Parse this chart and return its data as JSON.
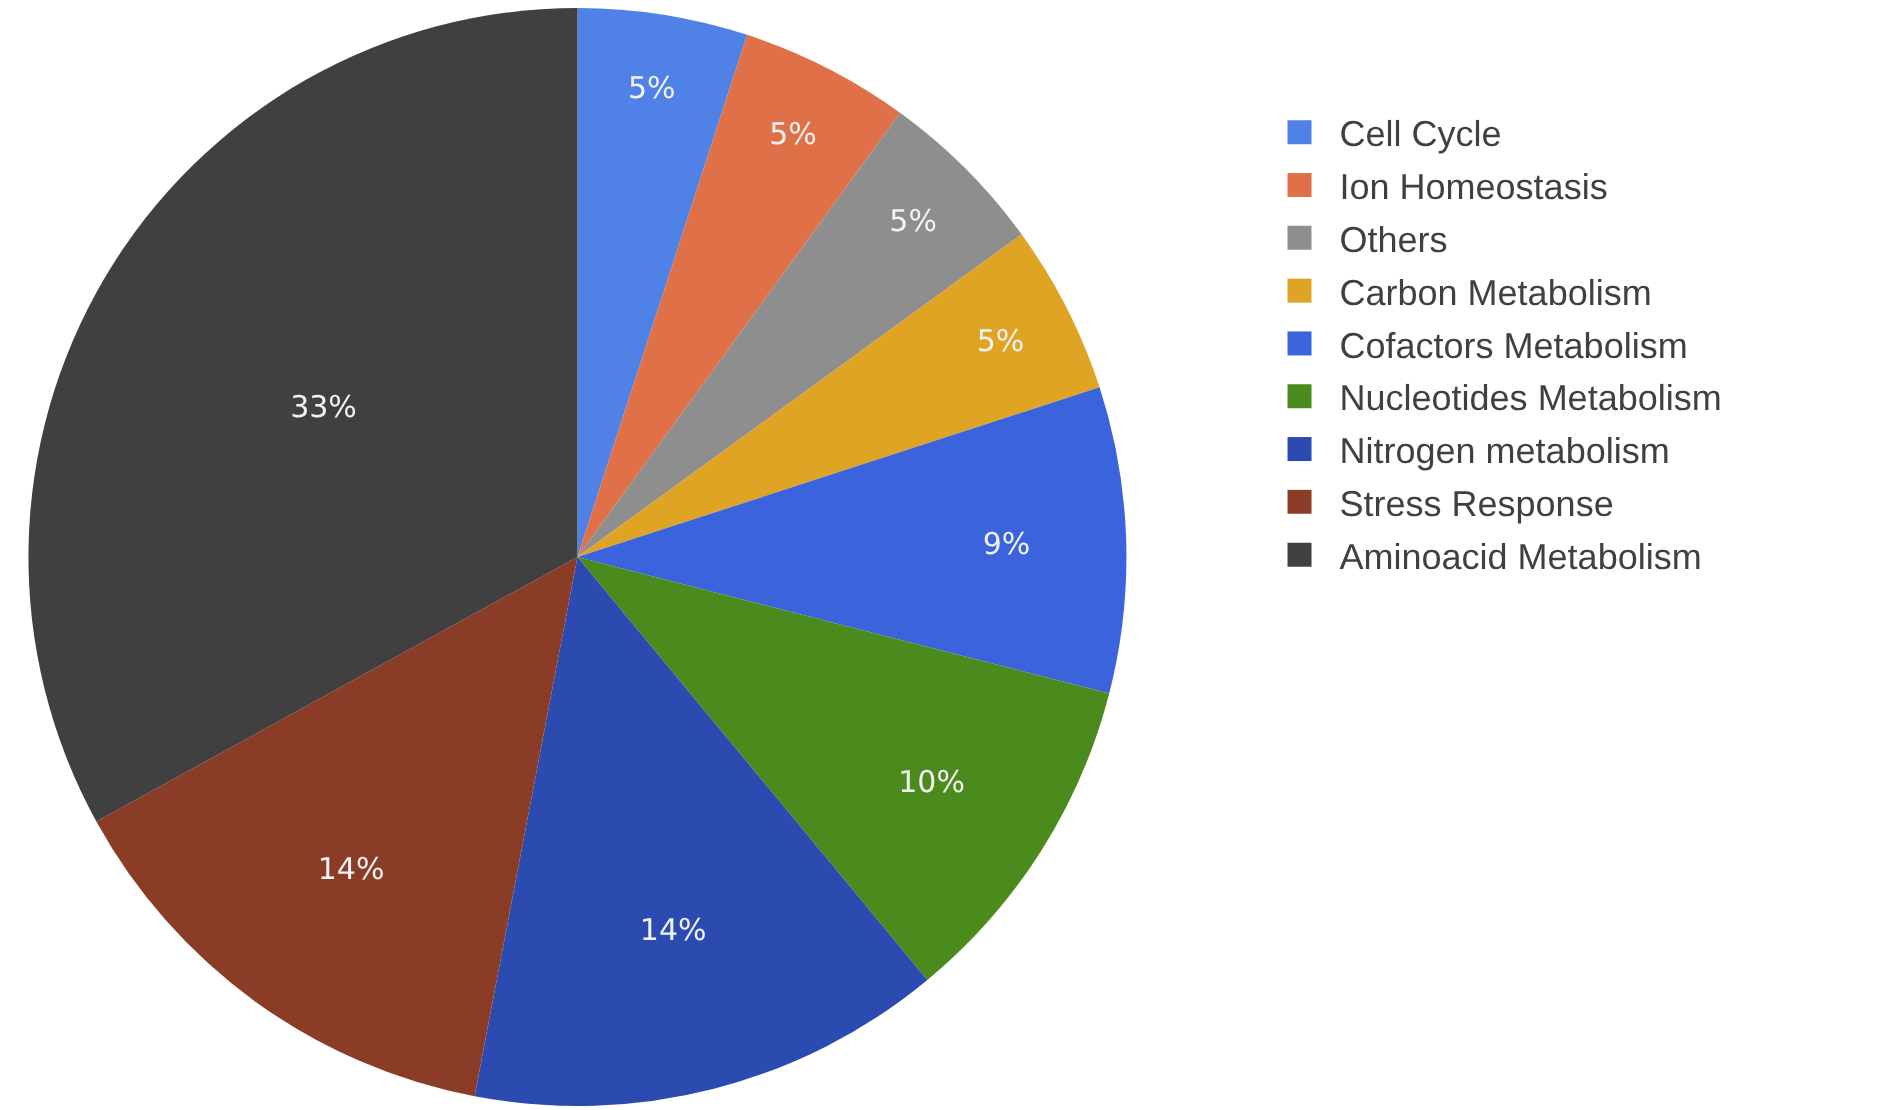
{
  "chart_data": {
    "type": "pie",
    "categories": [
      "Cell Cycle",
      "Ion Homeostasis",
      "Others",
      "Carbon Metabolism",
      "Cofactors Metabolism",
      "Nucleotides Metabolism",
      "Nitrogen metabolism",
      "Stress Response",
      "Aminoacid Metabolism"
    ],
    "values": [
      5,
      5,
      5,
      5,
      9,
      10,
      14,
      14,
      33
    ],
    "value_labels": [
      "5%",
      "5%",
      "5%",
      "5%",
      "9%",
      "10%",
      "14%",
      "14%",
      "33%"
    ],
    "colors": [
      "#4f81e6",
      "#e07048",
      "#8e8e8e",
      "#e0a424",
      "#3b63dc",
      "#4b8a1c",
      "#2b4bb0",
      "#8b3c26",
      "#404040"
    ],
    "legend": "right"
  }
}
